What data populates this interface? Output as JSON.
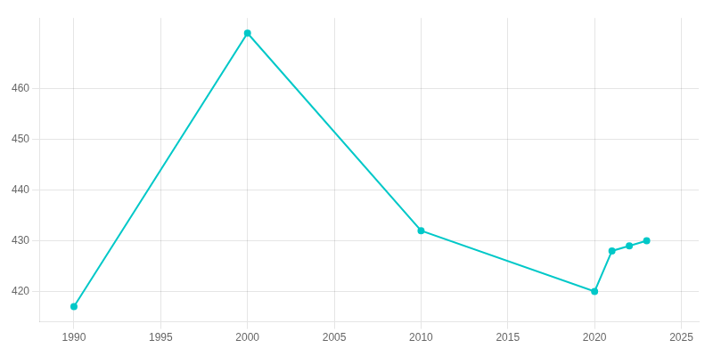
{
  "chart_data": {
    "type": "line",
    "x": [
      1990,
      2000,
      2010,
      2020,
      2021,
      2022,
      2023
    ],
    "values": [
      417,
      471,
      432,
      420,
      428,
      429,
      430
    ],
    "color": "#00c8c8",
    "marker": "circle",
    "xlim": [
      1988,
      2026
    ],
    "ylim": [
      414,
      474
    ],
    "xticks": [
      1990,
      1995,
      2000,
      2005,
      2010,
      2015,
      2020,
      2025
    ],
    "yticks": [
      420,
      430,
      440,
      450,
      460
    ],
    "grid": true
  }
}
